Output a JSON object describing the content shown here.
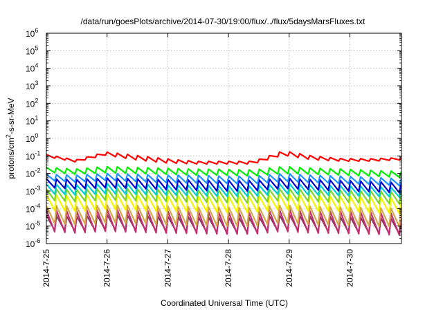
{
  "chart_data": {
    "type": "line",
    "title": "/data/run/goesPlots/archive/2014-07-30/19:00/flux/../flux/5daysMarsFluxes.txt",
    "xlabel": "Coordinated Universal Time (UTC)",
    "ylabel_parts": [
      "protons/cm",
      "2",
      "-s-sr-MeV"
    ],
    "x_range_days": [
      0,
      5.85
    ],
    "x_ticks": [
      {
        "day": 0,
        "label": "2014-7-25"
      },
      {
        "day": 1,
        "label": "2014-7-26"
      },
      {
        "day": 2,
        "label": "2014-7-27"
      },
      {
        "day": 3,
        "label": "2014-7-28"
      },
      {
        "day": 4,
        "label": "2014-7-29"
      },
      {
        "day": 5,
        "label": "2014-7-30"
      }
    ],
    "y_scale": "log",
    "y_range_exp": [
      -6,
      6
    ],
    "y_ticks": [
      {
        "exp": 6,
        "base": "10",
        "sup": "6"
      },
      {
        "exp": 5,
        "base": "10",
        "sup": "5"
      },
      {
        "exp": 4,
        "base": "10",
        "sup": "4"
      },
      {
        "exp": 3,
        "base": "10",
        "sup": "3"
      },
      {
        "exp": 2,
        "base": "10",
        "sup": "2"
      },
      {
        "exp": 1,
        "base": "10",
        "sup": "1"
      },
      {
        "exp": 0,
        "base": "10",
        "sup": "0"
      },
      {
        "exp": -1,
        "base": "10",
        "sup": "-1"
      },
      {
        "exp": -2,
        "base": "10",
        "sup": "-2"
      },
      {
        "exp": -3,
        "base": "10",
        "sup": "-3"
      },
      {
        "exp": -4,
        "base": "10",
        "sup": "-4"
      },
      {
        "exp": -5,
        "base": "10",
        "sup": "-5"
      },
      {
        "exp": -6,
        "base": "10",
        "sup": "-6"
      }
    ],
    "grid": true,
    "legend": "none",
    "oscillation_period_days": 0.167,
    "series": [
      {
        "color": "#ff0000",
        "peaks": [
          0.12,
          0.06,
          0.17,
          0.11,
          0.07,
          0.05,
          0.05,
          0.05,
          0.2,
          0.1,
          0.07,
          0.07,
          0.08
        ],
        "troughs": [
          0.09,
          0.045,
          0.11,
          0.06,
          0.04,
          0.035,
          0.035,
          0.035,
          0.11,
          0.06,
          0.05,
          0.05,
          0.06
        ]
      },
      {
        "color": "#00ee00",
        "peaks": [
          0.022,
          0.018,
          0.025,
          0.022,
          0.02,
          0.018,
          0.017,
          0.016,
          0.025,
          0.02,
          0.018,
          0.015,
          0.013
        ],
        "troughs": [
          0.012,
          0.009,
          0.011,
          0.01,
          0.009,
          0.008,
          0.008,
          0.007,
          0.01,
          0.009,
          0.008,
          0.007,
          0.006
        ]
      },
      {
        "color": "#1e90ff",
        "peaks": [
          0.009,
          0.008,
          0.01,
          0.009,
          0.008,
          0.008,
          0.007,
          0.007,
          0.01,
          0.008,
          0.007,
          0.006,
          0.005
        ],
        "troughs": [
          0.004,
          0.0032,
          0.004,
          0.0035,
          0.003,
          0.0028,
          0.0027,
          0.0025,
          0.0035,
          0.003,
          0.0027,
          0.0024,
          0.002
        ]
      },
      {
        "color": "#0000cd",
        "peaks": [
          0.005,
          0.0045,
          0.0055,
          0.005,
          0.0045,
          0.0042,
          0.004,
          0.004,
          0.0055,
          0.0045,
          0.004,
          0.0035,
          0.003
        ],
        "troughs": [
          0.0016,
          0.0013,
          0.0015,
          0.0014,
          0.0012,
          0.0011,
          0.001,
          0.001,
          0.0014,
          0.0012,
          0.001,
          0.0009,
          0.0008
        ]
      },
      {
        "color": "#00ced1",
        "peaks": [
          0.0025,
          0.0022,
          0.0027,
          0.0025,
          0.0022,
          0.0021,
          0.002,
          0.002,
          0.0027,
          0.0022,
          0.002,
          0.0018,
          0.0015
        ],
        "troughs": [
          0.0007,
          0.0006,
          0.0007,
          0.00065,
          0.0006,
          0.00055,
          0.0005,
          0.0005,
          0.0007,
          0.0006,
          0.00055,
          0.0005,
          0.00045
        ]
      },
      {
        "color": "#7fd42a",
        "peaks": [
          0.0013,
          0.0012,
          0.0014,
          0.0013,
          0.0012,
          0.0011,
          0.0011,
          0.001,
          0.0014,
          0.0012,
          0.0011,
          0.001,
          0.0009
        ],
        "troughs": [
          0.0003,
          0.00025,
          0.0003,
          0.00028,
          0.00025,
          0.00023,
          0.00022,
          0.0002,
          0.0003,
          0.00025,
          0.00023,
          0.0002,
          0.00018
        ]
      },
      {
        "color": "#f5f500",
        "peaks": [
          0.0006,
          0.00055,
          0.0007,
          0.0006,
          0.00055,
          0.0005,
          0.0005,
          0.00048,
          0.0007,
          0.00055,
          0.0005,
          0.00045,
          0.0004
        ],
        "troughs": [
          8e-05,
          7e-05,
          9e-05,
          8e-05,
          7e-05,
          7e-05,
          6e-05,
          6e-05,
          9e-05,
          7e-05,
          7e-05,
          6e-05,
          5e-05
        ]
      },
      {
        "color": "#d4a84a",
        "peaks": [
          0.00015,
          0.00013,
          0.00016,
          0.00015,
          0.00013,
          0.00012,
          0.00012,
          0.00011,
          0.00016,
          0.00013,
          0.00012,
          0.00011,
          0.0001
        ],
        "troughs": [
          1.5e-05,
          1.2e-05,
          1.5e-05,
          1.4e-05,
          1.2e-05,
          1.1e-05,
          1e-05,
          1e-05,
          1.5e-05,
          1.2e-05,
          1.1e-05,
          1e-05,
          9e-06
        ]
      },
      {
        "color": "#c03070",
        "peaks": [
          8e-05,
          7e-05,
          9e-05,
          8e-05,
          7e-05,
          7e-05,
          6e-05,
          6e-05,
          9e-05,
          7e-05,
          7e-05,
          6e-05,
          5e-05
        ],
        "troughs": [
          5e-06,
          4e-06,
          5e-06,
          4.5e-06,
          4e-06,
          3.8e-06,
          3.5e-06,
          3.5e-06,
          5e-06,
          4e-06,
          3.8e-06,
          3.5e-06,
          3e-06
        ]
      },
      {
        "color": "#8b3a62",
        "peaks": [
          4e-05,
          3.5e-05,
          4.5e-05,
          4e-05,
          3.5e-05,
          3.3e-05,
          3e-05,
          3e-05,
          4.5e-05,
          3.5e-05,
          3.3e-05,
          3e-05,
          2.5e-05
        ],
        "troughs": [
          6e-06,
          5e-06,
          6e-06,
          5.5e-06,
          5e-06,
          4.5e-06,
          4.2e-06,
          4e-06,
          6e-06,
          5e-06,
          4.5e-06,
          4e-06,
          3.5e-06
        ]
      }
    ]
  }
}
